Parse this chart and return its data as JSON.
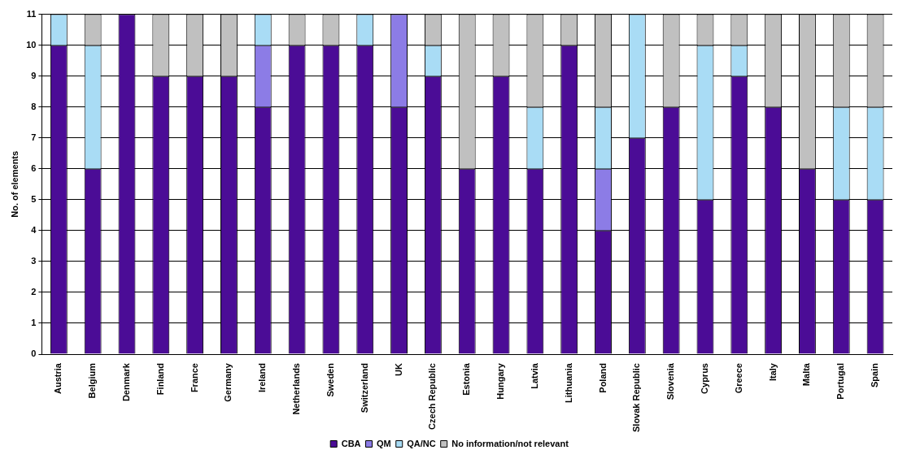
{
  "chart_data": {
    "type": "bar",
    "stacked": true,
    "ylabel": "No. of elements",
    "categories": [
      "Austria",
      "Belgium",
      "Denmark",
      "Finland",
      "France",
      "Germany",
      "Ireland",
      "Netherlands",
      "Sweden",
      "Switzerland",
      "UK",
      "Czech Republic",
      "Estonia",
      "Hungary",
      "Latvia",
      "Lithuania",
      "Poland",
      "Slovak Republic",
      "Slovenia",
      "Cyprus",
      "Greece",
      "Italy",
      "Malta",
      "Portugal",
      "Spain"
    ],
    "series": [
      {
        "name": "CBA",
        "color": "#4b0c96",
        "values": [
          10,
          6,
          11,
          9,
          9,
          9,
          8,
          10,
          10,
          10,
          8,
          9,
          6,
          9,
          6,
          10,
          4,
          7,
          8,
          5,
          9,
          8,
          6,
          5,
          5
        ]
      },
      {
        "name": "QM",
        "color": "#8c7ce6",
        "values": [
          0,
          0,
          0,
          0,
          0,
          0,
          2,
          0,
          0,
          0,
          3,
          0,
          0,
          0,
          0,
          0,
          2,
          0,
          0,
          0,
          0,
          0,
          0,
          0,
          0
        ]
      },
      {
        "name": "QA/NC",
        "color": "#a9dcf5",
        "values": [
          1,
          4,
          0,
          0,
          0,
          0,
          1,
          0,
          0,
          1,
          0,
          1,
          0,
          0,
          2,
          0,
          2,
          4,
          0,
          5,
          1,
          0,
          0,
          3,
          3
        ]
      },
      {
        "name": "No information/not relevant",
        "color": "#c0c0c0",
        "values": [
          0,
          1,
          0,
          2,
          2,
          2,
          0,
          1,
          1,
          0,
          0,
          1,
          5,
          2,
          3,
          1,
          3,
          0,
          3,
          1,
          1,
          3,
          5,
          3,
          3
        ]
      }
    ],
    "ylim": [
      0,
      11
    ],
    "yticks": [
      0,
      1,
      2,
      3,
      4,
      5,
      6,
      7,
      8,
      9,
      10,
      11
    ],
    "grid": "y",
    "legend": "bottom"
  }
}
